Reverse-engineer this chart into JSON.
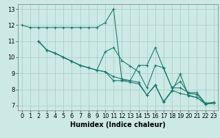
{
  "title": "",
  "xlabel": "Humidex (Indice chaleur)",
  "xlim": [
    -0.5,
    23.5
  ],
  "ylim": [
    6.7,
    13.3
  ],
  "xticks": [
    0,
    1,
    2,
    3,
    4,
    5,
    6,
    7,
    8,
    9,
    10,
    11,
    12,
    13,
    14,
    15,
    16,
    17,
    18,
    19,
    20,
    21,
    22,
    23
  ],
  "yticks": [
    7,
    8,
    9,
    10,
    11,
    12,
    13
  ],
  "bg_color": "#cce9e5",
  "grid_color": "#aacfca",
  "line_color": "#1a7a6e",
  "lines": [
    {
      "x": [
        0,
        1,
        2,
        3,
        4,
        5,
        6,
        7,
        8,
        9,
        10,
        11,
        12,
        13,
        14,
        15,
        16,
        17,
        18,
        19,
        20,
        21,
        22,
        23
      ],
      "y": [
        12.0,
        11.85,
        11.85,
        11.85,
        11.85,
        11.85,
        11.85,
        11.85,
        11.85,
        11.85,
        12.15,
        13.0,
        8.6,
        8.55,
        9.5,
        9.5,
        10.6,
        9.3,
        8.1,
        8.1,
        7.8,
        7.8,
        7.15,
        7.2
      ]
    },
    {
      "x": [
        2,
        3,
        4,
        5,
        6,
        7,
        8,
        9,
        10,
        11,
        12,
        13,
        14,
        15,
        16,
        17,
        18,
        19,
        20,
        21,
        22,
        23
      ],
      "y": [
        11.0,
        10.45,
        10.25,
        10.0,
        9.75,
        9.5,
        9.35,
        9.2,
        9.1,
        8.8,
        8.65,
        8.55,
        8.45,
        7.65,
        8.3,
        7.25,
        7.95,
        7.75,
        7.65,
        7.5,
        7.1,
        7.15
      ]
    },
    {
      "x": [
        2,
        3,
        4,
        5,
        6,
        7,
        8,
        9,
        10,
        11,
        12,
        13,
        14,
        15,
        16,
        17,
        18,
        19,
        20,
        21,
        22,
        23
      ],
      "y": [
        11.0,
        10.45,
        10.25,
        10.0,
        9.75,
        9.5,
        9.35,
        9.2,
        10.35,
        10.6,
        9.8,
        9.45,
        9.1,
        8.1,
        9.5,
        9.35,
        8.1,
        8.5,
        7.75,
        7.7,
        7.1,
        7.15
      ]
    },
    {
      "x": [
        2,
        3,
        4,
        5,
        6,
        7,
        8,
        9,
        10,
        11,
        12,
        13,
        14,
        15,
        16,
        17,
        18,
        19,
        20,
        21,
        22,
        23
      ],
      "y": [
        11.0,
        10.45,
        10.25,
        10.0,
        9.75,
        9.5,
        9.35,
        9.2,
        9.1,
        8.55,
        8.55,
        8.45,
        8.35,
        7.65,
        8.25,
        7.2,
        7.9,
        8.95,
        7.6,
        7.5,
        7.1,
        7.15
      ]
    }
  ],
  "fontsize_label": 7,
  "fontsize_tick": 6,
  "lw": 0.8,
  "ms": 3
}
